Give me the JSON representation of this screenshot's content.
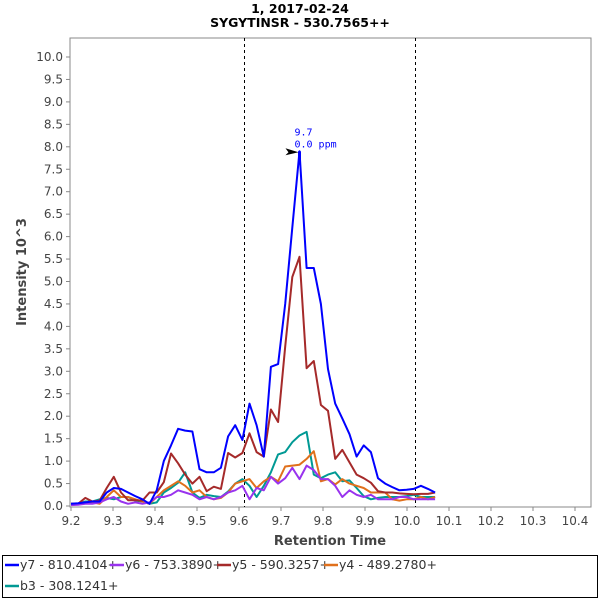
{
  "chart_data": {
    "type": "line",
    "title": "1, 2017-02-24",
    "subtitle": "SYGYTINSR - 530.7565++",
    "xlabel": "Retention Time",
    "ylabel": "Intensity 10^3",
    "xlim": [
      9.2,
      10.42
    ],
    "ylim": [
      0,
      10.4
    ],
    "xticks": [
      "9.2",
      "9.3",
      "9.4",
      "9.5",
      "9.6",
      "9.7",
      "9.8",
      "9.9",
      "10.0",
      "10.1",
      "10.2",
      "10.3",
      "10.4"
    ],
    "yticks": [
      "0.0",
      "0.5",
      "1.0",
      "1.5",
      "2.0",
      "2.5",
      "3.0",
      "3.5",
      "4.0",
      "4.5",
      "5.0",
      "5.5",
      "6.0",
      "6.5",
      "7.0",
      "7.5",
      "8.0",
      "8.5",
      "9.0",
      "9.5",
      "10.0"
    ],
    "grid": false,
    "legend": "bottom",
    "boundaries": [
      9.612,
      10.018
    ],
    "annotation": {
      "x": 9.744,
      "y": 7.9,
      "rt": "9.7",
      "ppm": "0.0 ppm"
    },
    "x_start": 9.2,
    "x_step": 0.017,
    "series": [
      {
        "name": "y7 - 810.4104+",
        "color": "#0000ff",
        "values": [
          0.05,
          0.06,
          0.08,
          0.1,
          0.1,
          0.3,
          0.4,
          0.38,
          0.3,
          0.22,
          0.15,
          0.05,
          0.35,
          1.0,
          1.35,
          1.72,
          1.68,
          1.66,
          0.82,
          0.75,
          0.75,
          0.85,
          1.55,
          1.8,
          1.47,
          2.28,
          1.8,
          1.1,
          3.1,
          3.16,
          4.5,
          6.2,
          7.9,
          5.3,
          5.3,
          4.5,
          3.05,
          2.28,
          1.95,
          1.6,
          1.1,
          1.35,
          1.2,
          0.62,
          0.5,
          0.42,
          0.35,
          0.36,
          0.38,
          0.45,
          0.38,
          0.3
        ]
      },
      {
        "name": "y6 - 753.3890+",
        "color": "#9933ee",
        "values": [
          0.02,
          0.03,
          0.05,
          0.05,
          0.08,
          0.15,
          0.2,
          0.1,
          0.05,
          0.08,
          0.05,
          0.08,
          0.2,
          0.2,
          0.25,
          0.35,
          0.3,
          0.25,
          0.15,
          0.2,
          0.15,
          0.2,
          0.3,
          0.35,
          0.45,
          0.15,
          0.4,
          0.35,
          0.65,
          0.5,
          0.62,
          0.85,
          0.6,
          0.9,
          0.8,
          0.6,
          0.6,
          0.45,
          0.2,
          0.35,
          0.25,
          0.2,
          0.25,
          0.15,
          0.15,
          0.15,
          0.2,
          0.2,
          0.15,
          0.15,
          0.15,
          0.15
        ]
      },
      {
        "name": "y5 - 590.3257+",
        "color": "#a52a2a",
        "values": [
          0.05,
          0.05,
          0.18,
          0.1,
          0.12,
          0.4,
          0.65,
          0.3,
          0.13,
          0.13,
          0.12,
          0.3,
          0.3,
          0.53,
          1.17,
          0.95,
          0.7,
          0.5,
          0.65,
          0.33,
          0.43,
          0.38,
          1.18,
          1.08,
          1.18,
          1.62,
          1.2,
          1.1,
          2.15,
          1.87,
          3.55,
          5.1,
          5.55,
          3.07,
          3.23,
          2.25,
          2.12,
          1.05,
          1.25,
          0.97,
          0.7,
          0.62,
          0.52,
          0.33,
          0.3,
          0.3,
          0.28,
          0.27,
          0.26,
          0.27,
          0.27,
          0.3
        ]
      },
      {
        "name": "y4 - 489.2780+",
        "color": "#e0701c",
        "values": [
          0.05,
          0.05,
          0.08,
          0.08,
          0.05,
          0.2,
          0.35,
          0.2,
          0.2,
          0.15,
          0.1,
          0.05,
          0.2,
          0.35,
          0.45,
          0.55,
          0.45,
          0.3,
          0.35,
          0.2,
          0.15,
          0.18,
          0.3,
          0.5,
          0.55,
          0.6,
          0.4,
          0.55,
          0.65,
          0.55,
          0.88,
          0.9,
          0.92,
          1.05,
          1.22,
          0.55,
          0.6,
          0.48,
          0.6,
          0.5,
          0.45,
          0.4,
          0.3,
          0.3,
          0.3,
          0.15,
          0.12,
          0.15,
          0.15,
          0.2,
          0.15,
          0.2
        ]
      },
      {
        "name": "b3 - 308.1241+",
        "color": "#009994",
        "values": [
          0.05,
          0.05,
          0.1,
          0.1,
          0.15,
          0.18,
          0.15,
          0.2,
          0.2,
          0.12,
          0.1,
          0.05,
          0.08,
          0.3,
          0.4,
          0.52,
          0.75,
          0.3,
          0.18,
          0.25,
          0.22,
          0.2,
          0.32,
          0.5,
          0.6,
          0.45,
          0.2,
          0.45,
          0.75,
          1.15,
          1.2,
          1.42,
          1.57,
          1.65,
          0.7,
          0.62,
          0.7,
          0.75,
          0.55,
          0.57,
          0.4,
          0.22,
          0.15,
          0.18,
          0.2,
          0.2,
          0.2,
          0.22,
          0.25,
          0.2,
          0.2,
          0.2
        ]
      }
    ]
  }
}
